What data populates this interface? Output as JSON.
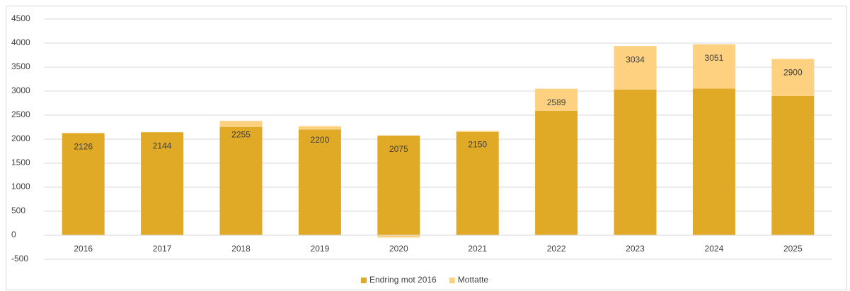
{
  "chart_data": {
    "type": "stacked_bar",
    "categories": [
      "2016",
      "2017",
      "2018",
      "2019",
      "2020",
      "2021",
      "2022",
      "2023",
      "2024",
      "2025"
    ],
    "series": [
      {
        "name": "Endring mot 2016",
        "color": "#e0aa26",
        "values": [
          2126,
          2144,
          2255,
          2200,
          2075,
          2150,
          2589,
          3034,
          3051,
          2900
        ],
        "show_labels": true
      },
      {
        "name": "Mottatte",
        "color": "#fdd17f",
        "values": [
          0,
          0,
          125,
          70,
          -50,
          20,
          461,
          906,
          924,
          770
        ],
        "show_labels": false
      }
    ],
    "ylim": [
      -500,
      4500
    ],
    "yticks": [
      -500,
      0,
      500,
      1000,
      1500,
      2000,
      2500,
      3000,
      3500,
      4000,
      4500
    ],
    "grid": true,
    "legend": "bottom"
  }
}
